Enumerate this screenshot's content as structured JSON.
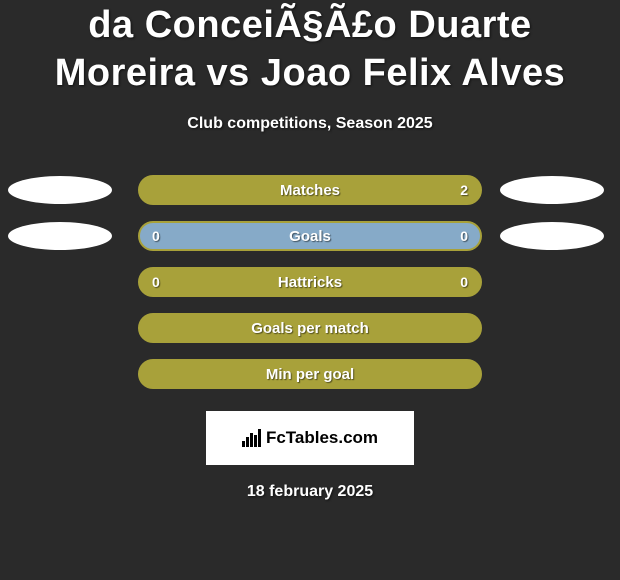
{
  "title": "da ConceiÃ§Ã£o Duarte Moreira vs Joao Felix Alves",
  "subtitle": "Club competitions, Season 2025",
  "date": "18 february 2025",
  "logo_text": "FcTables.com",
  "colors": {
    "background": "#2a2a2a",
    "bar_olive_fill": "#a8a13a",
    "bar_olive_border": "#a8a13a",
    "bar_blue_fill": "#86aac8",
    "bar_blue_border": "#a8a13a",
    "oval": "#ffffff",
    "text": "#ffffff"
  },
  "rows": [
    {
      "label": "Matches",
      "left_val": "",
      "right_val": "2",
      "fill": "#a8a13a",
      "border": "#a8a13a",
      "show_ovals": true
    },
    {
      "label": "Goals",
      "left_val": "0",
      "right_val": "0",
      "fill": "#86aac8",
      "border": "#a8a13a",
      "show_ovals": true
    },
    {
      "label": "Hattricks",
      "left_val": "0",
      "right_val": "0",
      "fill": "#a8a13a",
      "border": "#a8a13a",
      "show_ovals": false
    },
    {
      "label": "Goals per match",
      "left_val": "",
      "right_val": "",
      "fill": "#a8a13a",
      "border": "#a8a13a",
      "show_ovals": false
    },
    {
      "label": "Min per goal",
      "left_val": "",
      "right_val": "",
      "fill": "#a8a13a",
      "border": "#a8a13a",
      "show_ovals": false
    }
  ]
}
